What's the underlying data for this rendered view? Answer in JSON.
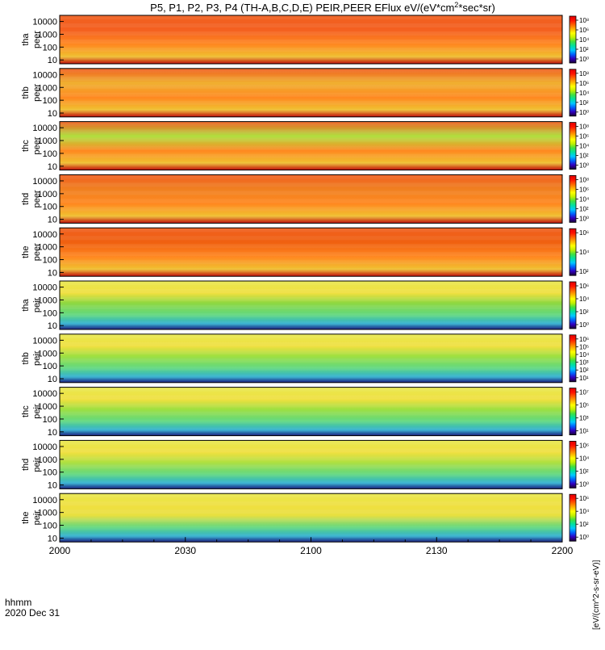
{
  "chart_data": {
    "type": "heatmap",
    "title": "P5, P1, P2, P3, P4 (TH-A,B,C,D,E) PEIR,PEER EFlux eV/(eV*cm²*sec*sr)",
    "title_parts": {
      "main": "P5, P1, P2, P3, P4 (TH-A,B,C,D,E) PEIR,PEER EFlux eV/(eV*cm",
      "sup": "2",
      "tail": "*sec*sr)"
    },
    "x_axis": {
      "label_line1": "hhmm",
      "label_line2": "2020 Dec 31",
      "ticks": [
        "2000",
        "2030",
        "2100",
        "2130",
        "2200"
      ],
      "minor_ticks_per_interval": 3
    },
    "y_axis": {
      "scale": "log",
      "range": [
        5,
        30000
      ],
      "ticks": [
        "10",
        "100",
        "1000",
        "10000"
      ]
    },
    "colorbar": {
      "colors": [
        "#1a0030",
        "#3000c0",
        "#0060ff",
        "#00c8ff",
        "#00e0a0",
        "#40e040",
        "#c0f000",
        "#ffff00",
        "#ffb000",
        "#ff6000",
        "#ff1000",
        "#e00000"
      ],
      "vertical_label": "[eV/(cm^2-s-sr-eV)]"
    },
    "panels": [
      {
        "probe": "tha",
        "instrument": "peer",
        "y_label_line1": "tha",
        "y_label_line2": "peer",
        "base_color": "#f46020",
        "cbar_ticks": [
          "10⁸",
          "10⁶",
          "10⁴",
          "10²",
          "10⁰"
        ]
      },
      {
        "probe": "thb",
        "instrument": "peer",
        "y_label_line1": "thb",
        "y_label_line2": "peer",
        "base_color": "#f0b030",
        "cbar_ticks": [
          "10⁸",
          "10⁶",
          "10⁴",
          "10²",
          "10⁰"
        ]
      },
      {
        "probe": "thc",
        "instrument": "peer",
        "y_label_line1": "thc",
        "y_label_line2": "peer",
        "base_color": "#b0e040",
        "cbar_ticks": [
          "10⁸",
          "10⁶",
          "10⁴",
          "10²",
          "10⁰"
        ]
      },
      {
        "probe": "thd",
        "instrument": "peer",
        "y_label_line1": "thd",
        "y_label_line2": "peer",
        "base_color": "#f08020",
        "cbar_ticks": [
          "10⁸",
          "10⁶",
          "10⁴",
          "10²",
          "10⁰"
        ]
      },
      {
        "probe": "the",
        "instrument": "peer",
        "y_label_line1": "the",
        "y_label_line2": "peer",
        "base_color": "#f06010",
        "cbar_ticks": [
          "10⁶",
          "10⁴",
          "10²"
        ]
      },
      {
        "probe": "tha",
        "instrument": "peir",
        "y_label_line1": "tha",
        "y_label_line2": "peir",
        "base_color": "#90d840",
        "cbar_ticks": [
          "10⁶",
          "10⁴",
          "10²",
          "10⁰"
        ]
      },
      {
        "probe": "thb",
        "instrument": "peir",
        "y_label_line1": "thb",
        "y_label_line2": "peir",
        "base_color": "#a0e040",
        "cbar_ticks": [
          "10⁶",
          "10⁵",
          "10⁴",
          "10³",
          "10²",
          "10¹"
        ]
      },
      {
        "probe": "thc",
        "instrument": "peir",
        "y_label_line1": "thc",
        "y_label_line2": "peir",
        "base_color": "#a0e040",
        "cbar_ticks": [
          "10⁷",
          "10⁵",
          "10³",
          "10¹"
        ]
      },
      {
        "probe": "thd",
        "instrument": "peir",
        "y_label_line1": "thd",
        "y_label_line2": "peir",
        "base_color": "#b0e040",
        "cbar_ticks": [
          "10⁶",
          "10⁴",
          "10²",
          "10⁰"
        ]
      },
      {
        "probe": "the",
        "instrument": "peir",
        "y_label_line1": "the",
        "y_label_line2": "peir",
        "base_color": "#e8e040",
        "cbar_ticks": [
          "10⁶",
          "10⁴",
          "10²",
          "10⁰"
        ]
      }
    ]
  }
}
